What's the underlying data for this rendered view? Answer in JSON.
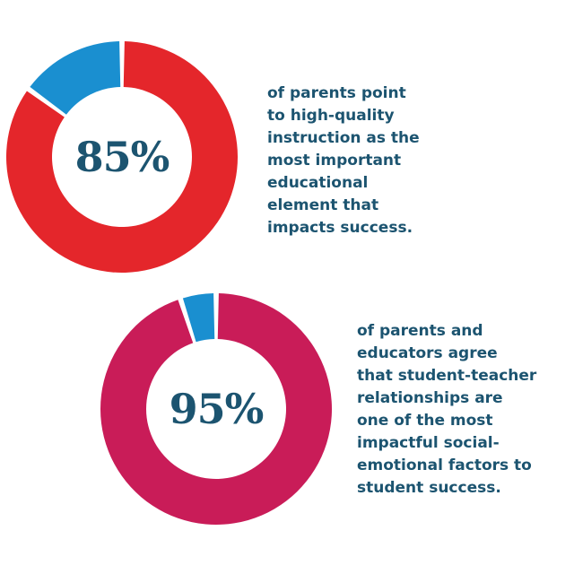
{
  "chart_data": [
    {
      "type": "pie",
      "value_label": "85%",
      "slices": [
        {
          "value": 85,
          "color": "#e4262b"
        },
        {
          "value": 15,
          "color": "#1a8fd0"
        }
      ],
      "caption_lines": [
        "of parents point",
        "to high-quality",
        "instruction as the",
        "most important",
        "educational",
        "element that",
        "impacts success."
      ]
    },
    {
      "type": "pie",
      "value_label": "95%",
      "slices": [
        {
          "value": 95,
          "color": "#c91c58"
        },
        {
          "value": 5,
          "color": "#1a8fd0"
        }
      ],
      "caption_lines": [
        "of parents and",
        "educators agree",
        "that student-teacher",
        "relationships are",
        "one of the most",
        "impactful social-",
        "emotional factors to",
        "student success."
      ]
    }
  ]
}
